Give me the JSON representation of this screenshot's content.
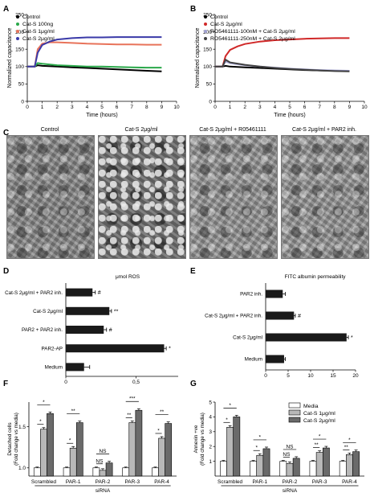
{
  "panel_letters": [
    "A",
    "B",
    "C",
    "D",
    "E",
    "F",
    "G"
  ],
  "C": {
    "titles": [
      "Control",
      "Cat-S 2μg/ml",
      "Cat-S 2μg/ml + R05461111",
      "Cat-S 2μg/ml + PAR2 inh."
    ]
  },
  "chart_data": [
    {
      "id": "A",
      "type": "line",
      "xlabel": "Time (hours)",
      "ylabel": "Normalized capacitance",
      "xlim": [
        0,
        10
      ],
      "ylim": [
        0,
        250
      ],
      "xticks": [
        0,
        1,
        2,
        3,
        4,
        5,
        6,
        7,
        8,
        9,
        10
      ],
      "yticks": [
        0,
        50,
        100,
        150,
        200,
        250
      ],
      "series": [
        {
          "name": "Control",
          "color": "#000000",
          "x": [
            0,
            0.5,
            0.7,
            1,
            2,
            3,
            4,
            5,
            6,
            7,
            8,
            9
          ],
          "y": [
            100,
            100,
            104,
            102,
            100,
            98,
            96,
            94,
            92,
            90,
            88,
            86
          ]
        },
        {
          "name": "Cat-S 100ng",
          "color": "#2aa84a",
          "x": [
            0,
            0.5,
            0.7,
            1,
            2,
            3,
            4,
            5,
            6,
            7,
            8,
            9
          ],
          "y": [
            100,
            100,
            110,
            108,
            104,
            102,
            100,
            100,
            99,
            98,
            97,
            97
          ]
        },
        {
          "name": "Cat-S 1μg/ml",
          "color": "#e8735a",
          "x": [
            0,
            0.5,
            0.7,
            1,
            1.5,
            2,
            3,
            4,
            5,
            6,
            7,
            8,
            9
          ],
          "y": [
            100,
            100,
            150,
            166,
            170,
            170,
            168,
            166,
            165,
            164,
            164,
            163,
            163
          ]
        },
        {
          "name": "Cat-S 2μg/ml",
          "color": "#3a3aa8",
          "x": [
            0,
            0.5,
            0.7,
            1,
            1.5,
            2,
            3,
            4,
            5,
            6,
            7,
            8,
            9
          ],
          "y": [
            100,
            100,
            140,
            162,
            172,
            178,
            182,
            184,
            184,
            185,
            185,
            185,
            185
          ]
        }
      ]
    },
    {
      "id": "B",
      "type": "line",
      "xlabel": "Time (hours)",
      "ylabel": "Normalized capacitance",
      "xlim": [
        0,
        10
      ],
      "ylim": [
        0,
        250
      ],
      "xticks": [
        0,
        1,
        2,
        3,
        4,
        5,
        6,
        7,
        8,
        9,
        10
      ],
      "yticks": [
        0,
        50,
        100,
        150,
        200,
        250
      ],
      "series": [
        {
          "name": "Control",
          "color": "#000000",
          "x": [
            0,
            0.5,
            0.7,
            1,
            2,
            3,
            4,
            5,
            6,
            7,
            8,
            9
          ],
          "y": [
            100,
            100,
            102,
            100,
            98,
            96,
            94,
            92,
            90,
            89,
            88,
            87
          ]
        },
        {
          "name": "Cat-S 2μg/ml",
          "color": "#d02828",
          "x": [
            0,
            0.5,
            0.7,
            1,
            1.5,
            2,
            3,
            4,
            5,
            6,
            7,
            8,
            9
          ],
          "y": [
            100,
            100,
            130,
            148,
            158,
            165,
            172,
            176,
            178,
            180,
            181,
            182,
            182
          ]
        },
        {
          "name": "RO5461111-100nM + Cat-S 2μg/ml",
          "color": "#a0a0d0",
          "x": [
            0,
            0.5,
            0.7,
            1,
            2,
            3,
            4,
            5,
            6,
            7,
            8,
            9
          ],
          "y": [
            100,
            100,
            115,
            110,
            104,
            100,
            97,
            94,
            92,
            90,
            89,
            88
          ]
        },
        {
          "name": "RO5461111-250nM + Cat-S 2μg/ml",
          "color": "#404040",
          "x": [
            0,
            0.5,
            0.7,
            1,
            2,
            3,
            4,
            5,
            6,
            7,
            8,
            9
          ],
          "y": [
            100,
            100,
            120,
            112,
            105,
            100,
            96,
            93,
            91,
            89,
            87,
            86
          ]
        }
      ]
    },
    {
      "id": "D",
      "type": "bar",
      "orientation": "horizontal",
      "title": "μmol ROS",
      "categories": [
        "Cat-S 2μg/ml + PAR2 inh.",
        "Cat-S 2μg/ml",
        "PAR2 + PAR2 inh.",
        "PAR2-AP",
        "Medium"
      ],
      "values": [
        0.19,
        0.31,
        0.27,
        0.7,
        0.13
      ],
      "errors": [
        0.02,
        0.015,
        0.02,
        0.015,
        0.04
      ],
      "annotations": [
        "#",
        "**",
        "#",
        "*",
        ""
      ],
      "xlim": [
        0,
        0.8
      ],
      "xticks": [
        0,
        0.5
      ],
      "xticklabels": [
        "0",
        "0,5"
      ]
    },
    {
      "id": "E",
      "type": "bar",
      "orientation": "horizontal",
      "title": "FITC albumin permeability",
      "categories": [
        "PAR2 inh.",
        "Cat-S 2μg/ml + PAR2 inh.",
        "Cat-S 2μg/ml",
        "Medium"
      ],
      "values": [
        3.8,
        6.3,
        18.0,
        4.1
      ],
      "errors": [
        0.6,
        0.3,
        0.4,
        0.3
      ],
      "annotations": [
        "",
        "#",
        "*",
        ""
      ],
      "xlim": [
        0,
        20
      ],
      "xticks": [
        0,
        5,
        10,
        15,
        20
      ]
    },
    {
      "id": "F",
      "type": "bar",
      "ylabel": "Detached cells\n(Fold change vs media)",
      "xlabel": "siRNA",
      "categories": [
        "Scrambled",
        "PAR-1",
        "PAR-2",
        "PAR-3",
        "PAR-4"
      ],
      "series": [
        {
          "name": "Media",
          "values": [
            1.0,
            1.0,
            1.0,
            1.0,
            1.0
          ]
        },
        {
          "name": "Cat-S 1μg/ml",
          "values": [
            1.47,
            1.24,
            0.97,
            1.55,
            1.36
          ]
        },
        {
          "name": "Cat-S 2μg/ml",
          "values": [
            1.66,
            1.55,
            1.06,
            1.7,
            1.54
          ]
        }
      ],
      "ylim": [
        0.9,
        1.8
      ],
      "yticks": [
        1.0,
        1.5
      ],
      "yticklabels": [
        "1.0",
        "1.5"
      ],
      "significance": [
        [
          "*",
          "*"
        ],
        [
          "*",
          "**"
        ],
        [
          "NS",
          "NS"
        ],
        [
          "**",
          "***"
        ],
        [
          "*",
          "**"
        ]
      ]
    },
    {
      "id": "G",
      "type": "bar",
      "ylabel": "Annexin +ve\n(Fold change vs media)",
      "xlabel": "siRNA",
      "categories": [
        "Scrambled",
        "PAR-1",
        "PAR-2",
        "PAR-3",
        "PAR-4"
      ],
      "series": [
        {
          "name": "Media",
          "values": [
            1.0,
            1.0,
            1.0,
            1.0,
            1.0
          ]
        },
        {
          "name": "Cat-S 1μg/ml",
          "values": [
            3.3,
            1.4,
            0.85,
            1.6,
            1.45
          ]
        },
        {
          "name": "Cat-S 2μg/ml",
          "values": [
            4.0,
            1.85,
            1.2,
            1.9,
            1.65
          ]
        }
      ],
      "ylim": [
        0,
        5
      ],
      "yticks": [
        1,
        2,
        3,
        4,
        5
      ],
      "significance": [
        [
          "*",
          "*"
        ],
        [
          "*",
          "*"
        ],
        [
          "NS",
          "NS"
        ],
        [
          "**",
          "*"
        ],
        [
          "**",
          "*"
        ]
      ]
    }
  ]
}
